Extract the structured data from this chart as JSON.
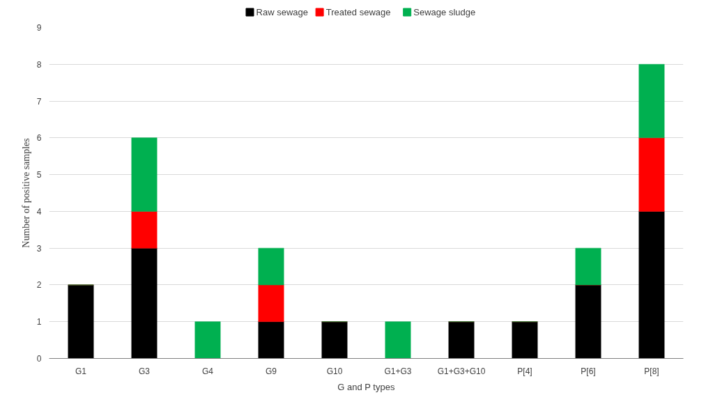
{
  "chart_data": {
    "type": "bar",
    "stacked": true,
    "xlabel": "G and P types",
    "ylabel": "Number of positive samples",
    "categories": [
      "G1",
      "G3",
      "G4",
      "G9",
      "G10",
      "G1+G3",
      "G1+G3+G10",
      "P[4]",
      "P[6]",
      "P[8]"
    ],
    "series": [
      {
        "name": "Raw sewage",
        "color": "#000000",
        "values": [
          2,
          3,
          0,
          1,
          1,
          0,
          1,
          1,
          2,
          4
        ]
      },
      {
        "name": "Treated sewage",
        "color": "#ff0000",
        "values": [
          0,
          1,
          0,
          1,
          0,
          0,
          0,
          0,
          0,
          2
        ]
      },
      {
        "name": "Sewage sludge",
        "color": "#00b050",
        "values": [
          0,
          2,
          1,
          1,
          0,
          1,
          0,
          0,
          1,
          2
        ]
      }
    ],
    "ylim": [
      0,
      9
    ],
    "yticks": [
      0,
      1,
      2,
      3,
      4,
      5,
      6,
      7,
      8,
      9
    ],
    "grid": "y",
    "legend": "top"
  }
}
